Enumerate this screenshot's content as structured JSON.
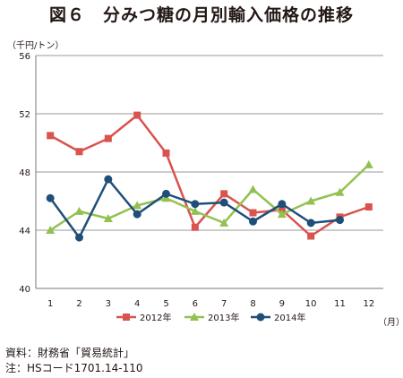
{
  "title": "図６　分みつ糖の月別輸入価格の推移",
  "footer": {
    "source": "資料：財務省「貿易統計」",
    "note": "注：HSコード1701.14-110"
  },
  "chart_data": {
    "type": "line",
    "ylabel": "（千円/トン）",
    "xlabel": "（月）",
    "categories": [
      "1",
      "2",
      "3",
      "4",
      "5",
      "6",
      "7",
      "8",
      "9",
      "10",
      "11",
      "12"
    ],
    "ylim": [
      40,
      56
    ],
    "yticks": [
      "40",
      "44",
      "48",
      "52",
      "56"
    ],
    "grid": "horizontal",
    "legend_position": "bottom",
    "series": [
      {
        "name": "2012年",
        "color": "#d9534f",
        "marker": "square",
        "values": [
          50.5,
          49.4,
          50.3,
          51.9,
          49.3,
          44.2,
          46.5,
          45.2,
          45.4,
          43.6,
          44.9,
          45.6
        ]
      },
      {
        "name": "2013年",
        "color": "#93c151",
        "marker": "triangle",
        "values": [
          44.0,
          45.3,
          44.8,
          45.7,
          46.2,
          45.3,
          44.5,
          46.8,
          45.1,
          46.0,
          46.6,
          48.5
        ]
      },
      {
        "name": "2014年",
        "color": "#1f4e79",
        "marker": "circle",
        "values": [
          46.2,
          43.5,
          47.5,
          45.1,
          46.5,
          45.8,
          45.9,
          44.6,
          45.8,
          44.5,
          44.7,
          null
        ]
      }
    ]
  }
}
